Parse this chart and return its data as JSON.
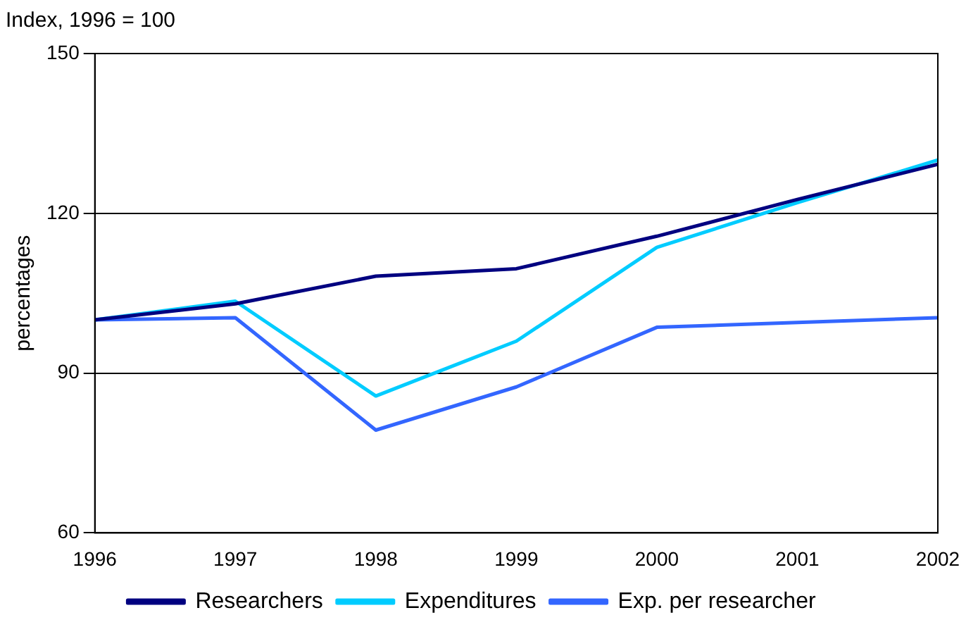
{
  "chart_data": {
    "type": "line",
    "title": "Index, 1996 = 100",
    "ylabel": "percentages",
    "x": [
      1996,
      1997,
      1998,
      1999,
      2000,
      2001,
      2002
    ],
    "series": [
      {
        "name": "Researchers",
        "color": "#000080",
        "values": [
          100,
          103,
          108.2,
          109.6,
          115.7,
          122.6,
          129.2
        ]
      },
      {
        "name": "Expenditures",
        "color": "#00ccff",
        "values": [
          100,
          103.5,
          85.7,
          96,
          113.6,
          122,
          130
        ]
      },
      {
        "name": "Exp. per researcher",
        "color": "#3366ff",
        "values": [
          100,
          100.4,
          79.3,
          87.4,
          98.6,
          99.5,
          100.4
        ]
      }
    ],
    "xlim": [
      1996,
      2002
    ],
    "xticks": [
      1996,
      1997,
      1998,
      1999,
      2000,
      2001,
      2002
    ],
    "ylim": [
      60,
      150
    ],
    "yticks": [
      60,
      90,
      120,
      150
    ],
    "grid": "y",
    "legend": "bottom",
    "marker": "none",
    "line_style": "solid"
  }
}
